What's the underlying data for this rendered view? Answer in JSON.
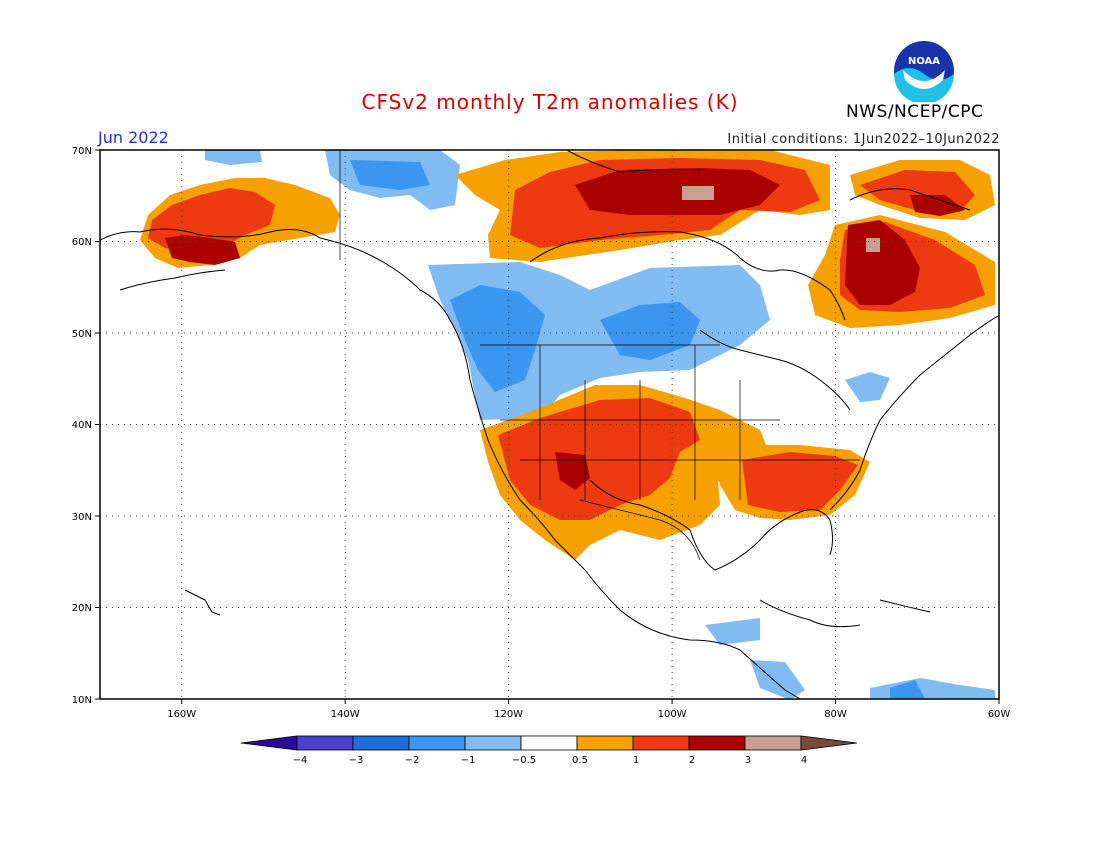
{
  "header": {
    "title": "CFSv2 monthly T2m anomalies (K)",
    "month": "Jun 2022",
    "initial_conditions": "Initial conditions: 1Jun2022–10Jun2022",
    "agency": "NWS/NCEP/CPC",
    "logo_text": "NOAA",
    "logo_icon": "noaa-logo-icon"
  },
  "map": {
    "region": "North America",
    "lat_labels": [
      "70N",
      "60N",
      "50N",
      "40N",
      "30N",
      "20N",
      "10N"
    ],
    "lon_labels": [
      "160W",
      "140W",
      "120W",
      "100W",
      "80W",
      "60W"
    ],
    "grid": "dotted"
  },
  "legend": {
    "tick_labels": [
      "−4",
      "−3",
      "−2",
      "−1",
      "−0.5",
      "0.5",
      "1",
      "2",
      "3",
      "4"
    ],
    "colors": [
      "#2a0aa0",
      "#4a3fcf",
      "#1f6fd8",
      "#3a96ee",
      "#80bbf2",
      "#ffffff",
      "#f7a100",
      "#ee3a10",
      "#aa0000",
      "#c9a090",
      "#7a4a38"
    ],
    "left_arrow_color": "#2a0aa0",
    "right_arrow_color": "#7a4a38"
  }
}
